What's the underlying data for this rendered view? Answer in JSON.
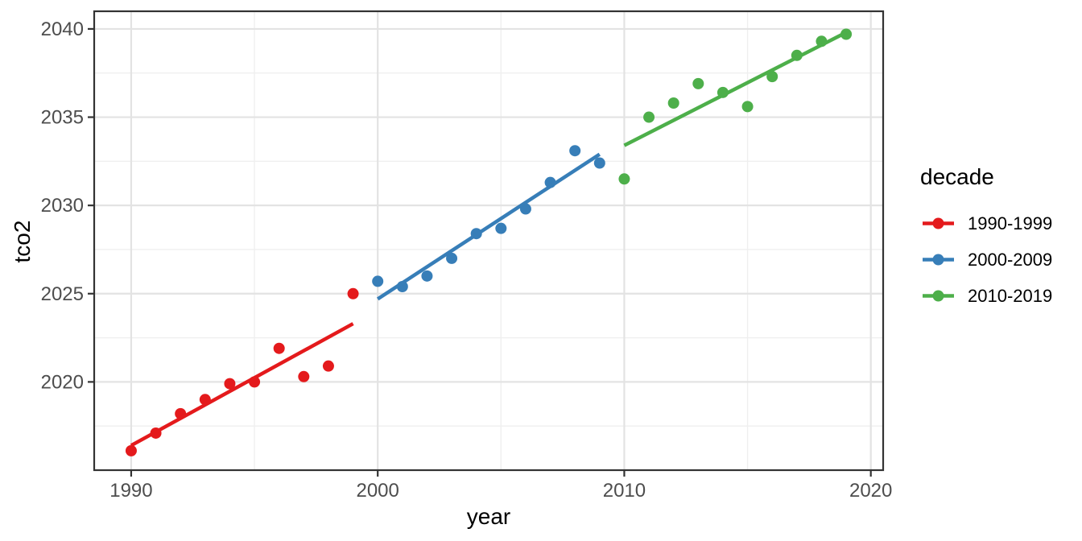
{
  "chart_data": {
    "type": "scatter",
    "title": "",
    "xlabel": "year",
    "ylabel": "tco2",
    "legend_title": "decade",
    "legend_position": "right",
    "grid": true,
    "xlim": [
      1988.5,
      2020.5
    ],
    "ylim": [
      2015.0,
      2041.0
    ],
    "x_major_ticks": [
      1990,
      2000,
      2010,
      2020
    ],
    "x_minor_ticks": [
      1995,
      2005,
      2015
    ],
    "y_major_ticks": [
      2020,
      2025,
      2030,
      2035,
      2040
    ],
    "y_minor_ticks": [
      2017.5,
      2022.5,
      2027.5,
      2032.5,
      2037.5
    ],
    "series": [
      {
        "name": "1990-1999",
        "color": "#E41A1C",
        "x": [
          1990,
          1991,
          1992,
          1993,
          1994,
          1995,
          1996,
          1997,
          1998,
          1999
        ],
        "y": [
          2016.1,
          2017.1,
          2018.2,
          2019.0,
          2019.9,
          2020.0,
          2021.9,
          2020.3,
          2020.9,
          2025.0
        ],
        "trend_line": {
          "x": [
            1990,
            1999
          ],
          "y": [
            2016.4,
            2023.3
          ]
        }
      },
      {
        "name": "2000-2009",
        "color": "#377EB8",
        "x": [
          2000,
          2001,
          2002,
          2003,
          2004,
          2005,
          2006,
          2007,
          2008,
          2009
        ],
        "y": [
          2025.7,
          2025.4,
          2026.0,
          2027.0,
          2028.4,
          2028.7,
          2029.8,
          2031.3,
          2033.1,
          2032.4
        ],
        "trend_line": {
          "x": [
            2000,
            2009
          ],
          "y": [
            2024.7,
            2032.9
          ]
        }
      },
      {
        "name": "2010-2019",
        "color": "#4DAF4A",
        "x": [
          2010,
          2011,
          2012,
          2013,
          2014,
          2015,
          2016,
          2017,
          2018,
          2019
        ],
        "y": [
          2031.5,
          2035.0,
          2035.8,
          2036.9,
          2036.4,
          2035.6,
          2037.3,
          2038.5,
          2039.3,
          2039.7
        ],
        "trend_line": {
          "x": [
            2010,
            2019
          ],
          "y": [
            2033.4,
            2039.8
          ]
        }
      }
    ],
    "colors": {
      "background": "#FFFFFF",
      "panel_background": "#FFFFFF",
      "grid_major": "#E3E3E3",
      "grid_minor": "#EFEFEF",
      "panel_border": "#333333",
      "tick_mark": "#333333",
      "tick_label": "#4D4D4D",
      "axis_title": "#000000",
      "legend_text": "#000000"
    }
  }
}
